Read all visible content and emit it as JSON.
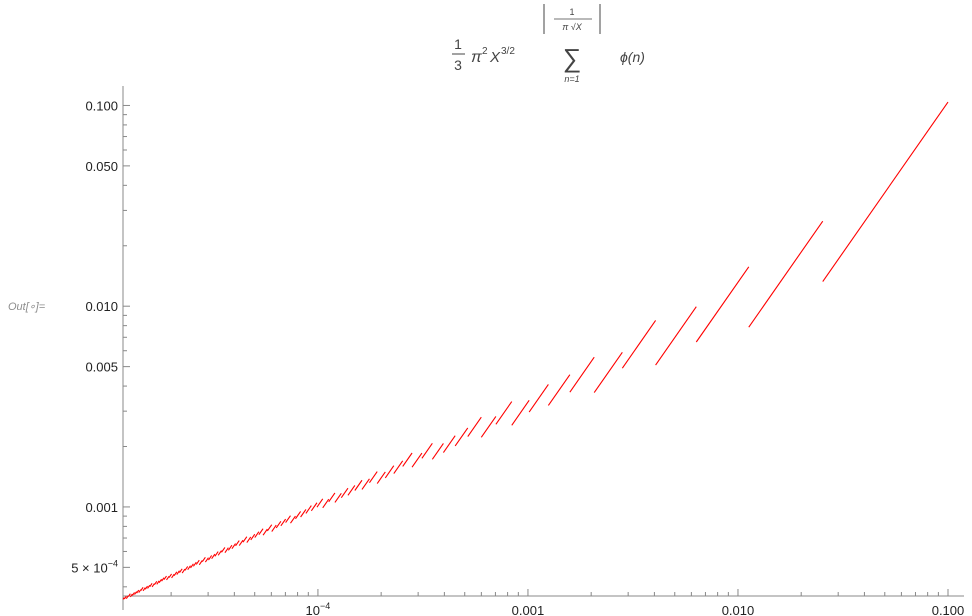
{
  "cell": {
    "out_label": "Out[∘]="
  },
  "chart_data": {
    "type": "line",
    "title": {
      "coefficient_numerator": "1",
      "coefficient_denominator": "3",
      "pi_symbol": "π",
      "pi_power": "2",
      "variable": "X",
      "variable_power": "3/2",
      "sum_symbol": "∑",
      "sum_lower": "n=1",
      "upper_limit_numerator": "1",
      "upper_limit_denominator": "π √X",
      "summand": "ϕ(n)"
    },
    "x_scale": "log",
    "y_scale": "log",
    "xlim": [
      1.18e-05,
      0.1
    ],
    "ylim": [
      0.00036,
      0.125
    ],
    "x_ticks": [
      {
        "value": 0.0001,
        "label": "10",
        "sup": "−4"
      },
      {
        "value": 0.001,
        "label": "0.001"
      },
      {
        "value": 0.01,
        "label": "0.010"
      },
      {
        "value": 0.1,
        "label": "0.100"
      }
    ],
    "y_ticks": [
      {
        "value": 0.1,
        "label": "0.100"
      },
      {
        "value": 0.05,
        "label": "0.050"
      },
      {
        "value": 0.01,
        "label": "0.010"
      },
      {
        "value": 0.005,
        "label": "0.005"
      },
      {
        "value": 0.001,
        "label": "0.001"
      },
      {
        "value": 0.0005,
        "label": "5 × 10",
        "sup": "−4"
      }
    ],
    "grid": false,
    "series": [
      {
        "color": "#ff0000",
        "function": "(1/3) π^2 X^(3/2) Σ_{n=1}^{⌊1/(π√X)⌋} ϕ(n)",
        "plot_style": "piecewise-jumps"
      }
    ]
  }
}
